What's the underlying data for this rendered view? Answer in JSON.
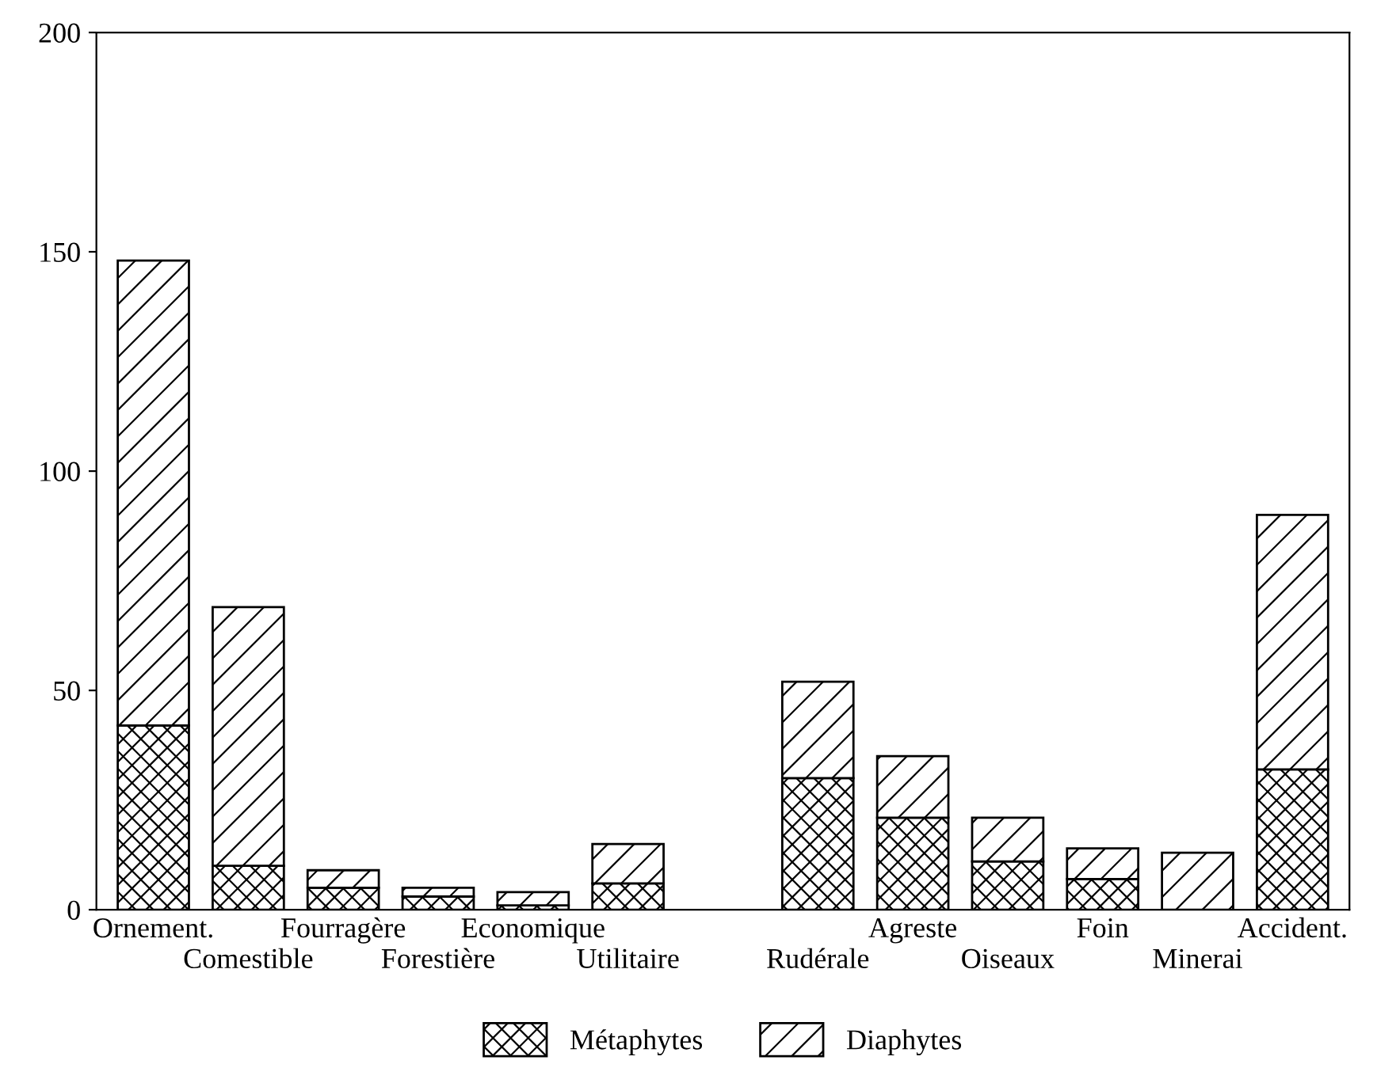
{
  "chart_data": {
    "type": "bar",
    "stacked": true,
    "categories": [
      "Ornement.",
      "Comestible",
      "Fourragère",
      "Forestière",
      "Economique",
      "Utilitaire",
      null,
      "Rudérale",
      "Agreste",
      "Oiseaux",
      "Foin",
      "Minerai",
      "Accident."
    ],
    "series": [
      {
        "name": "Métaphytes",
        "color": "#000000",
        "values": [
          42,
          10,
          5,
          3,
          1,
          6,
          null,
          30,
          21,
          11,
          7,
          0,
          32
        ]
      },
      {
        "name": "Diaphytes",
        "color": "#000000",
        "values": [
          106,
          59,
          4,
          2,
          3,
          9,
          null,
          22,
          14,
          10,
          7,
          13,
          58
        ]
      }
    ],
    "ylim": [
      0,
      200
    ],
    "yticks": [
      0,
      50,
      100,
      150,
      200
    ],
    "grid": false,
    "legend": "bottom"
  }
}
